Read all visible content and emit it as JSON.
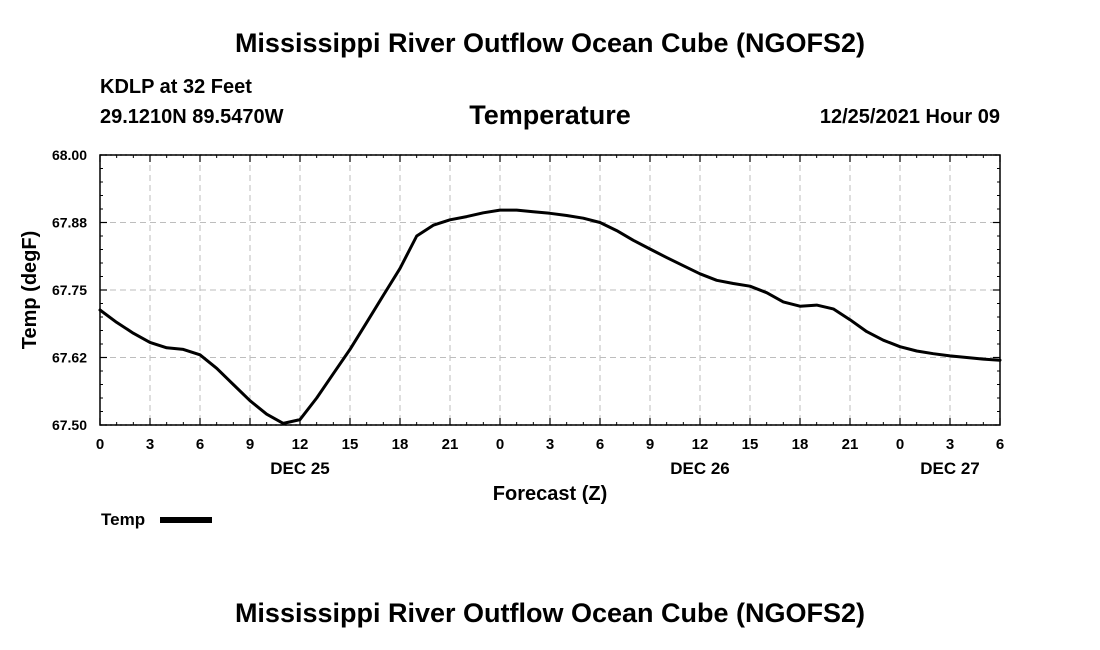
{
  "page": {
    "title_top": "Mississippi River Outflow Ocean Cube (NGOFS2)",
    "title_bottom": "Mississippi River Outflow Ocean Cube (NGOFS2)",
    "station": "KDLP at 32 Feet",
    "coords": "29.1210N  89.5470W",
    "variable_title": "Temperature",
    "timestamp": "12/25/2021 Hour 09"
  },
  "chart_data": {
    "type": "line",
    "title": "Temperature",
    "xlabel": "Forecast (Z)",
    "ylabel": "Temp (degF)",
    "ylim": [
      67.5,
      68.0
    ],
    "xlim": [
      0,
      54
    ],
    "grid": true,
    "legend_position": "bottom-left",
    "y_ticks": [
      67.5,
      67.625,
      67.75,
      67.875,
      68.0
    ],
    "y_tick_labels": [
      "67.50",
      "67.62",
      "67.75",
      "67.88",
      "68.00"
    ],
    "x_tick_labels": [
      "0",
      "3",
      "6",
      "9",
      "12",
      "15",
      "18",
      "21",
      "0",
      "3",
      "6",
      "9",
      "12",
      "15",
      "18",
      "21",
      "0",
      "3",
      "6"
    ],
    "x_date_labels": [
      {
        "hour": 12,
        "label": "DEC 25"
      },
      {
        "hour": 36,
        "label": "DEC 26"
      },
      {
        "hour": 51,
        "label": "DEC 27"
      }
    ],
    "series": [
      {
        "name": "Temp",
        "color": "#000000",
        "x": [
          0,
          1,
          2,
          3,
          4,
          5,
          6,
          7,
          8,
          9,
          10,
          11,
          12,
          13,
          14,
          15,
          16,
          17,
          18,
          19,
          20,
          21,
          22,
          23,
          24,
          25,
          26,
          27,
          28,
          29,
          30,
          31,
          32,
          33,
          34,
          35,
          36,
          37,
          38,
          39,
          40,
          41,
          42,
          43,
          44,
          45,
          46,
          47,
          48,
          49,
          50,
          51,
          52,
          53,
          54
        ],
        "values": [
          67.713,
          67.69,
          67.67,
          67.653,
          67.643,
          67.64,
          67.63,
          67.605,
          67.575,
          67.545,
          67.52,
          67.503,
          67.51,
          67.55,
          67.595,
          67.64,
          67.69,
          67.74,
          67.79,
          67.85,
          67.87,
          67.88,
          67.886,
          67.893,
          67.898,
          67.898,
          67.895,
          67.892,
          67.888,
          67.883,
          67.875,
          67.86,
          67.842,
          67.826,
          67.81,
          67.795,
          67.78,
          67.768,
          67.762,
          67.757,
          67.745,
          67.728,
          67.72,
          67.722,
          67.715,
          67.695,
          67.673,
          67.657,
          67.645,
          67.637,
          67.632,
          67.628,
          67.625,
          67.622,
          67.62
        ]
      }
    ]
  }
}
